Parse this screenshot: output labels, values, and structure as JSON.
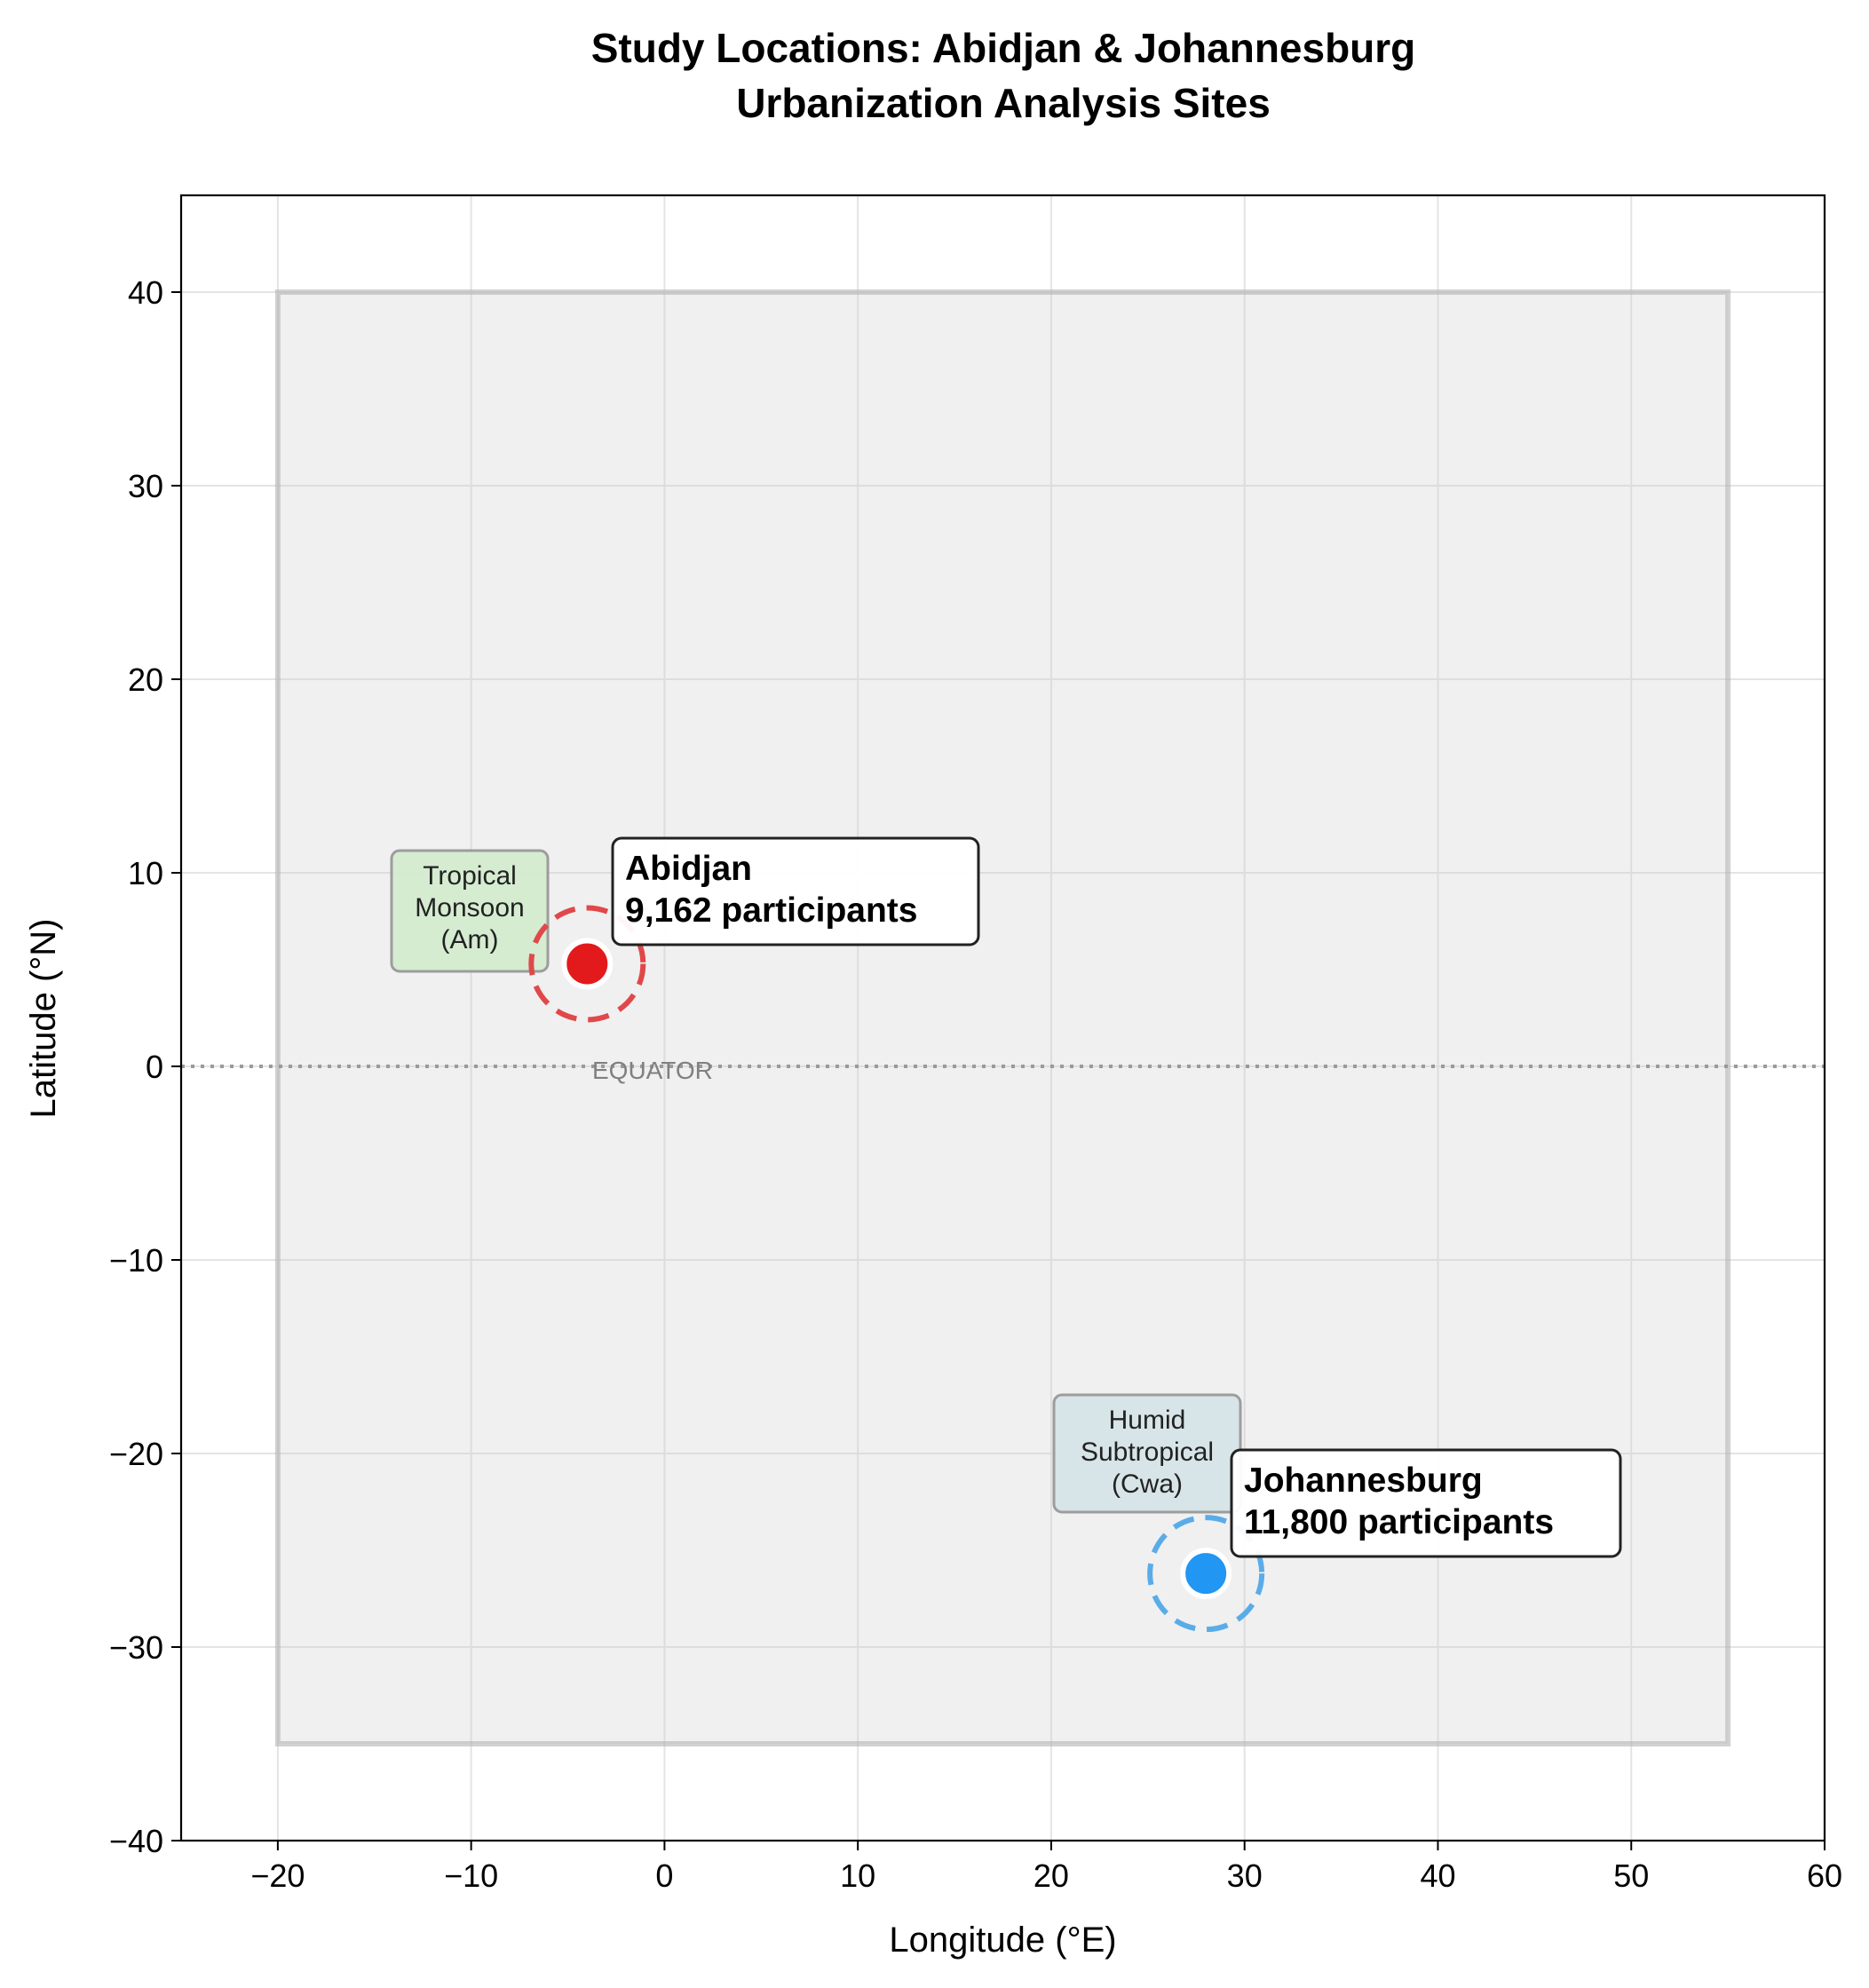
{
  "chart_data": {
    "type": "scatter",
    "title_lines": [
      "Study Locations: Abidjan & Johannesburg",
      "Urbanization Analysis Sites"
    ],
    "xlabel": "Longitude (°E)",
    "ylabel": "Latitude (°N)",
    "xlim": [
      -25,
      60
    ],
    "ylim": [
      -40,
      45
    ],
    "xticks": [
      -20,
      -10,
      0,
      10,
      20,
      30,
      40,
      50,
      60
    ],
    "yticks": [
      -40,
      -30,
      -20,
      -10,
      0,
      10,
      20,
      30,
      40
    ],
    "grid": true,
    "region_box": {
      "lon": [
        -20,
        55
      ],
      "lat": [
        -35,
        40
      ]
    },
    "equator": {
      "lat": 0,
      "label": "EQUATOR"
    },
    "points": [
      {
        "name": "Abidjan",
        "lon": -4.0,
        "lat": 5.3,
        "participants": 9162,
        "label_lines": [
          "Abidjan",
          "9,162 participants"
        ],
        "color": "#e31a1c",
        "ring_color": "#e0484a",
        "climate_lines": [
          "Tropical",
          "Monsoon",
          "(Am)"
        ],
        "climate_fill": "#d4ecd0"
      },
      {
        "name": "Johannesburg",
        "lon": 28.0,
        "lat": -26.2,
        "participants": 11800,
        "label_lines": [
          "Johannesburg",
          "11,800 participants"
        ],
        "color": "#2196f3",
        "ring_color": "#5aace8",
        "climate_lines": [
          "Humid",
          "Subtropical",
          "(Cwa)"
        ],
        "climate_fill": "#d6e4e8"
      }
    ]
  }
}
